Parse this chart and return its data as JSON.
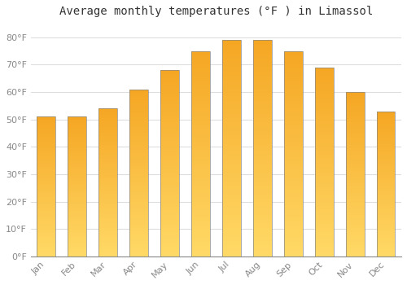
{
  "title": "Average monthly temperatures (°F ) in Limassol",
  "months": [
    "Jan",
    "Feb",
    "Mar",
    "Apr",
    "May",
    "Jun",
    "Jul",
    "Aug",
    "Sep",
    "Oct",
    "Nov",
    "Dec"
  ],
  "values": [
    51,
    51,
    54,
    61,
    68,
    75,
    79,
    79,
    75,
    69,
    60,
    53
  ],
  "bar_color_top": "#F5A623",
  "bar_color_bottom": "#FFD966",
  "bar_edge_color": "#888888",
  "ylim": [
    0,
    85
  ],
  "yticks": [
    0,
    10,
    20,
    30,
    40,
    50,
    60,
    70,
    80
  ],
  "ytick_labels": [
    "0°F",
    "10°F",
    "20°F",
    "30°F",
    "40°F",
    "50°F",
    "60°F",
    "70°F",
    "80°F"
  ],
  "background_color": "#FFFFFF",
  "grid_color": "#DDDDDD",
  "title_fontsize": 10,
  "tick_fontsize": 8,
  "tick_color": "#888888"
}
